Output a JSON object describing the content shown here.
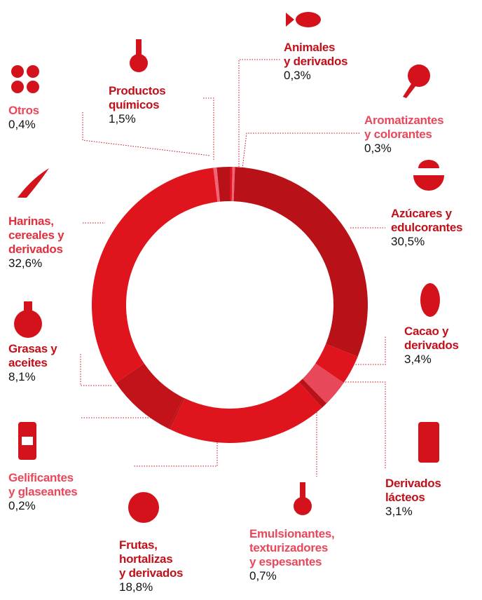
{
  "chart_data": {
    "type": "pie",
    "categories": [
      "Animales\ny derivados",
      "Aromatizantes\ny colorantes",
      "Azúcares y\nedulcorantes",
      "Cacao y\nderivados",
      "Derivados\nlácteos",
      "Emulsionantes,\ntexturizadores\ny espesantes",
      "Frutas,\nhortalizas\ny derivados",
      "Gelificantes\ny glaseantes",
      "Grasas y\naceites",
      "Harinas,\ncereales y\nderivados",
      "Otros",
      "Productos\nquímicos"
    ],
    "values": [
      0.3,
      0.3,
      30.5,
      3.4,
      3.1,
      0.7,
      18.8,
      0.2,
      8.1,
      32.6,
      0.4,
      1.5
    ],
    "value_labels": [
      "0,3%",
      "0,3%",
      "30,5%",
      "3,4%",
      "3,1%",
      "0,7%",
      "18,8%",
      "0,2%",
      "8,1%",
      "32,6%",
      "0,4%",
      "1,5%"
    ],
    "colors": [
      "#e0141c",
      "#f06474",
      "#b81117",
      "#e0141c",
      "#e8485a",
      "#b81117",
      "#e0141c",
      "#b81117",
      "#c2121a",
      "#e0141c",
      "#f06474",
      "#b81117"
    ]
  }
}
